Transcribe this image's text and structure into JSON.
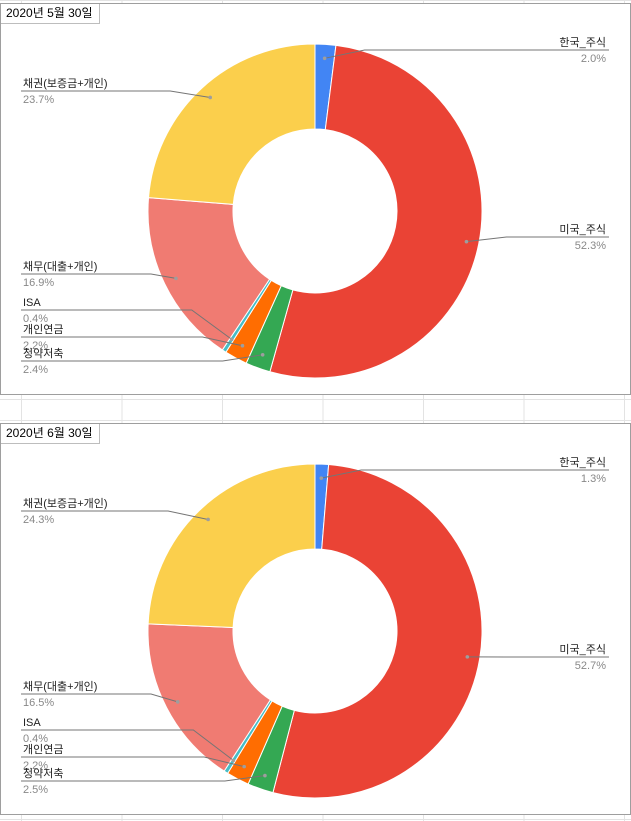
{
  "chart_data": [
    {
      "type": "pie",
      "title": "2020년 5월 30일",
      "donut": true,
      "slices": [
        {
          "name": "한국_주식",
          "value": 2.0,
          "label": "2.0%",
          "color": "#4285f4",
          "side": "right"
        },
        {
          "name": "미국_주식",
          "value": 52.3,
          "label": "52.3%",
          "color": "#ea4335",
          "side": "right"
        },
        {
          "name": "청약저축",
          "value": 2.4,
          "label": "2.4%",
          "color": "#34a853",
          "side": "left"
        },
        {
          "name": "개인연금",
          "value": 2.2,
          "label": "2.2%",
          "color": "#ff6d01",
          "side": "left"
        },
        {
          "name": "ISA",
          "value": 0.4,
          "label": "0.4%",
          "color": "#46bdc6",
          "side": "left"
        },
        {
          "name": "채무(대출+개인)",
          "value": 16.9,
          "label": "16.9%",
          "color": "#f07b72",
          "side": "left"
        },
        {
          "name": "채권(보증금+개인)",
          "value": 23.7,
          "label": "23.7%",
          "color": "#fbcf4c",
          "side": "left"
        }
      ]
    },
    {
      "type": "pie",
      "title": "2020년 6월 30일",
      "donut": true,
      "slices": [
        {
          "name": "한국_주식",
          "value": 1.3,
          "label": "1.3%",
          "color": "#4285f4",
          "side": "right"
        },
        {
          "name": "미국_주식",
          "value": 52.7,
          "label": "52.7%",
          "color": "#ea4335",
          "side": "right"
        },
        {
          "name": "청약저축",
          "value": 2.5,
          "label": "2.5%",
          "color": "#34a853",
          "side": "left"
        },
        {
          "name": "개인연금",
          "value": 2.2,
          "label": "2.2%",
          "color": "#ff6d01",
          "side": "left"
        },
        {
          "name": "ISA",
          "value": 0.4,
          "label": "0.4%",
          "color": "#46bdc6",
          "side": "left"
        },
        {
          "name": "채무(대출+개인)",
          "value": 16.5,
          "label": "16.5%",
          "color": "#f07b72",
          "side": "left"
        },
        {
          "name": "채권(보증금+개인)",
          "value": 24.3,
          "label": "24.3%",
          "color": "#fbcf4c",
          "side": "left"
        }
      ]
    }
  ]
}
